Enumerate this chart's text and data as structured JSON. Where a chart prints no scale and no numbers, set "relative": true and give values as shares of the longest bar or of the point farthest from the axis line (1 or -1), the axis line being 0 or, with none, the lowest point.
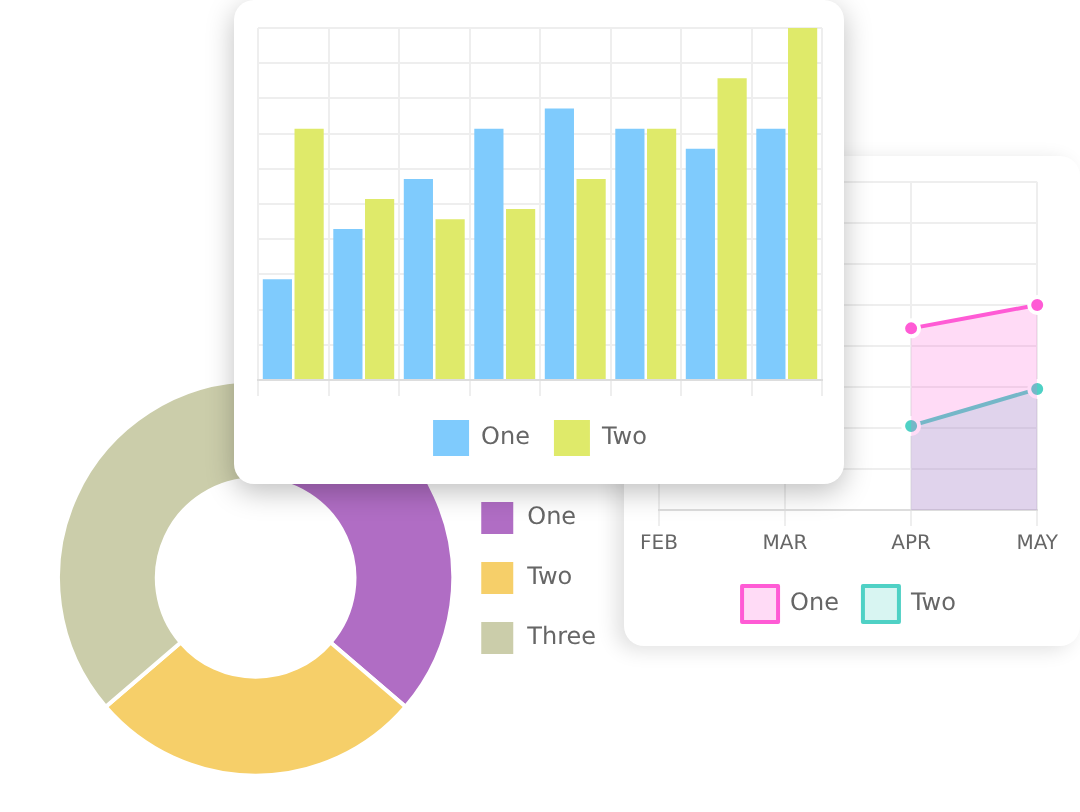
{
  "chart_data": [
    {
      "type": "donut",
      "categories": [
        "One",
        "Two",
        "Three"
      ],
      "values": [
        36.3,
        27.4,
        36.3
      ],
      "colors": [
        "#b06dc4",
        "#f6cf69",
        "#cbcdaa"
      ],
      "legend": "right"
    },
    {
      "type": "area",
      "categories": [
        "FEB",
        "MAR",
        "APR",
        "MAY"
      ],
      "relative": true,
      "grid": true,
      "legend": "bottom",
      "marker": "circle",
      "tick_labels": "x",
      "series": [
        {
          "name": "One",
          "color": "#ff5bd5",
          "values": [
            null,
            null,
            0.886,
            1
          ]
        },
        {
          "name": "Two",
          "color": "#4fd1c5",
          "values": [
            null,
            null,
            0.41,
            0.59
          ]
        }
      ]
    },
    {
      "type": "bar",
      "categories": [
        null,
        null,
        null,
        null,
        null,
        null,
        null,
        null
      ],
      "relative": true,
      "grid": true,
      "legend": "bottom",
      "tick_labels": false,
      "series": [
        {
          "name": "One",
          "color": "#7fcbfd",
          "values": [
            0.286,
            0.429,
            0.571,
            0.714,
            0.771,
            0.714,
            0.657,
            0.714
          ]
        },
        {
          "name": "Two",
          "color": "#dfea6a",
          "values": [
            0.714,
            0.514,
            0.457,
            0.486,
            0.571,
            0.714,
            0.857,
            1
          ]
        }
      ]
    }
  ]
}
